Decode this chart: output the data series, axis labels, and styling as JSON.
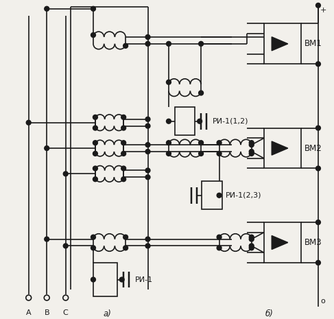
{
  "bg_color": "#f2f0eb",
  "line_color": "#1a1a1a",
  "fig_width": 4.87,
  "fig_height": 4.65,
  "dpi": 100,
  "label_a": "A",
  "label_b": "B",
  "label_c": "C",
  "label_a_fig": "а)",
  "label_b_fig": "б)",
  "label_ri1": "РИ-1",
  "label_ri12": "РИ-1(1,2)",
  "label_ri23": "РИ-1(2,3)",
  "label_vm1": "ВМ1",
  "label_vm2": "ВМ2",
  "label_vm3": "ВМ3"
}
